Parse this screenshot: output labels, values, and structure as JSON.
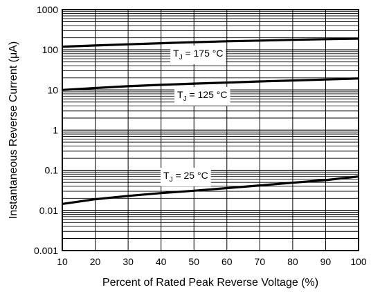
{
  "chart_data": {
    "type": "line",
    "xlabel": "Percent of Rated Peak Reverse Voltage (%)",
    "ylabel": "Instantaneous Reverse Current (μA)",
    "y_scale": "log",
    "xlim": [
      10,
      100
    ],
    "ylim": [
      0.001,
      1000
    ],
    "x_ticks": [
      10,
      20,
      30,
      40,
      50,
      60,
      70,
      80,
      90,
      100
    ],
    "x_tick_labels": [
      "10",
      "20",
      "30",
      "40",
      "50",
      "60",
      "70",
      "80",
      "90",
      "100"
    ],
    "y_ticks": [
      1000,
      100,
      10,
      1,
      0.1,
      0.01,
      0.001
    ],
    "y_tick_labels": [
      "1000",
      "100",
      "10",
      "1",
      "0.1",
      "0.01",
      "0.001"
    ],
    "grid": true,
    "series": [
      {
        "label_main": "T",
        "label_sub": "J",
        "label_rest": " = 175 °C",
        "x": [
          10,
          20,
          30,
          40,
          50,
          60,
          70,
          80,
          90,
          100
        ],
        "values": [
          120,
          128,
          137,
          146,
          155,
          163,
          170,
          177,
          184,
          190
        ]
      },
      {
        "label_main": "T",
        "label_sub": "J",
        "label_rest": " = 125 °C",
        "x": [
          10,
          20,
          30,
          40,
          50,
          60,
          70,
          80,
          90,
          100
        ],
        "values": [
          10,
          11.2,
          12.4,
          13.4,
          14.4,
          15.3,
          16.3,
          17.2,
          18.2,
          19.3
        ]
      },
      {
        "label_main": "T",
        "label_sub": "J",
        "label_rest": " = 25 °C",
        "x": [
          10,
          20,
          30,
          40,
          50,
          60,
          70,
          80,
          90,
          100
        ],
        "values": [
          0.0145,
          0.019,
          0.023,
          0.027,
          0.031,
          0.036,
          0.042,
          0.049,
          0.057,
          0.07
        ]
      }
    ]
  }
}
